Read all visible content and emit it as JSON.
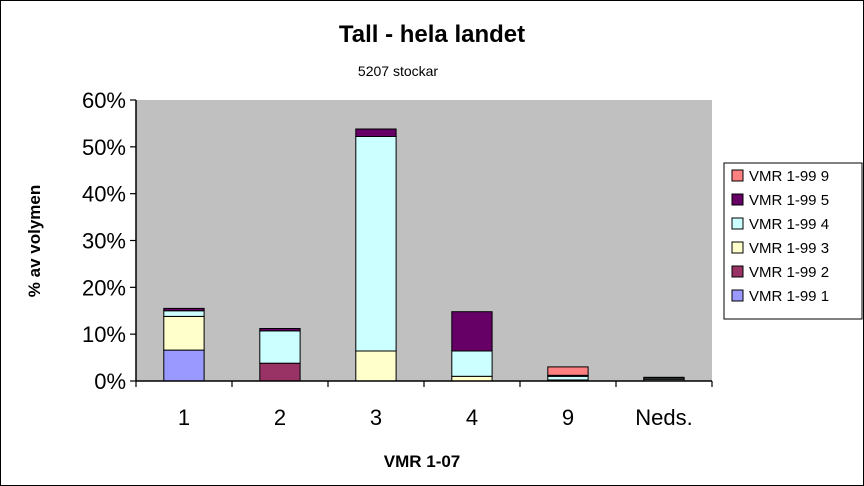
{
  "chart_data": {
    "type": "bar",
    "stacked": true,
    "title": "Tall - hela landet",
    "subtitle": "5207 stockar",
    "xlabel": "VMR 1-07",
    "ylabel": "% av volymen",
    "categories": [
      "1",
      "2",
      "3",
      "4",
      "9",
      "Neds."
    ],
    "ylim": [
      0,
      60
    ],
    "y_ticks": [
      "0%",
      "10%",
      "20%",
      "30%",
      "40%",
      "50%",
      "60%"
    ],
    "grid": false,
    "plot_background": "#c0c0c0",
    "legend_position": "right",
    "series": [
      {
        "name": "VMR 1-99 1",
        "color": "#9999ff",
        "values": [
          6.6,
          0,
          0,
          0,
          0,
          0
        ]
      },
      {
        "name": "VMR 1-99 2",
        "color": "#993366",
        "values": [
          0,
          3.8,
          0,
          0,
          0,
          0
        ]
      },
      {
        "name": "VMR 1-99 3",
        "color": "#ffffcc",
        "values": [
          7.2,
          0,
          6.4,
          1.0,
          0.2,
          0.3
        ]
      },
      {
        "name": "VMR 1-99 4",
        "color": "#ccffff",
        "values": [
          1.2,
          6.9,
          45.8,
          5.4,
          0.8,
          0.3
        ]
      },
      {
        "name": "VMR 1-99 5",
        "color": "#660066",
        "values": [
          0.5,
          0.5,
          1.6,
          8.4,
          0.2,
          0.2
        ]
      },
      {
        "name": "VMR 1-99 9",
        "color": "#ff8080",
        "values": [
          0,
          0,
          0,
          0,
          1.8,
          0
        ]
      }
    ],
    "legend_order": [
      "VMR 1-99 9",
      "VMR 1-99 5",
      "VMR 1-99 4",
      "VMR 1-99 3",
      "VMR 1-99 2",
      "VMR 1-99 1"
    ]
  }
}
